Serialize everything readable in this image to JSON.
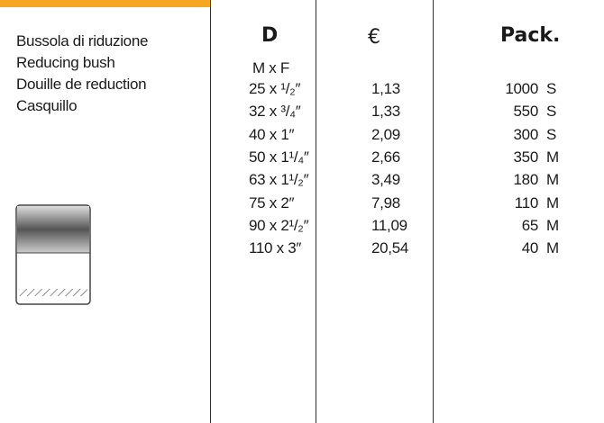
{
  "description": [
    "Bussola di riduzione",
    "Reducing bush",
    "Douille de reduction",
    "Casquillo"
  ],
  "headers": {
    "size": "D",
    "price": "€",
    "pack": "Pack."
  },
  "subheader": "M x F",
  "rows": [
    [
      "25 x ¹/₂″",
      "1,13",
      "1000",
      "S"
    ],
    [
      "32 x ³/₄″",
      "1,33",
      "550",
      "S"
    ],
    [
      "40 x 1″",
      "2,09",
      "300",
      "S"
    ],
    [
      "50 x 1¹/₄″",
      "2,66",
      "350",
      "M"
    ],
    [
      "63 x 1¹/₂″",
      "3,49",
      "180",
      "M"
    ],
    [
      "75 x 2″",
      "7,98",
      "110",
      "M"
    ],
    [
      "90 x 2¹/₂″",
      "11,09",
      "65",
      "M"
    ],
    [
      "110 x 3″",
      "20,54",
      "40",
      "M"
    ]
  ]
}
